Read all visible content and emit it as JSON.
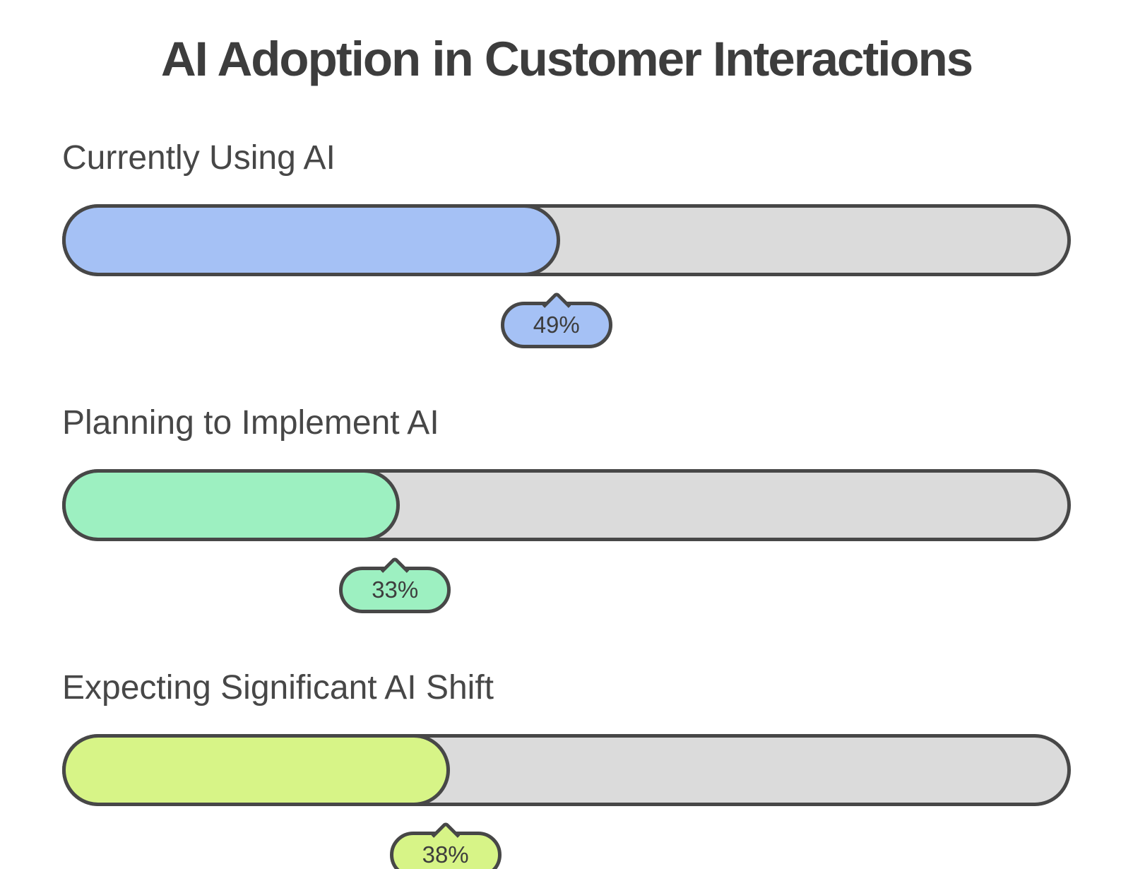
{
  "title": "AI Adoption in Customer Interactions",
  "colors": {
    "background": "#ffffff",
    "track_gray": "#dbdbdb",
    "outline_dark": "#474747",
    "title_text": "#3d3d3d",
    "label_text": "#474747",
    "bar1_blue": "#a5c1f5",
    "bar2_mint": "#9df0c1",
    "bar3_lime": "#d7f487"
  },
  "chart_data": {
    "type": "bar",
    "orientation": "horizontal",
    "title": "AI Adoption in Customer Interactions",
    "xlabel": "",
    "ylabel": "",
    "xlim": [
      0,
      100
    ],
    "unit": "%",
    "grid": false,
    "legend": false,
    "categories": [
      "Currently Using AI",
      "Planning to Implement AI",
      "Expecting Significant AI Shift"
    ],
    "values": [
      49,
      33,
      38
    ],
    "rows": [
      {
        "label": "Currently Using AI",
        "value": 49,
        "value_label": "49%",
        "fill_color": "#a5c1f5"
      },
      {
        "label": "Planning to Implement AI",
        "value": 33,
        "value_label": "33%",
        "fill_color": "#9df0c1"
      },
      {
        "label": "Expecting Significant AI Shift",
        "value": 38,
        "value_label": "38%",
        "fill_color": "#d7f487"
      }
    ]
  }
}
